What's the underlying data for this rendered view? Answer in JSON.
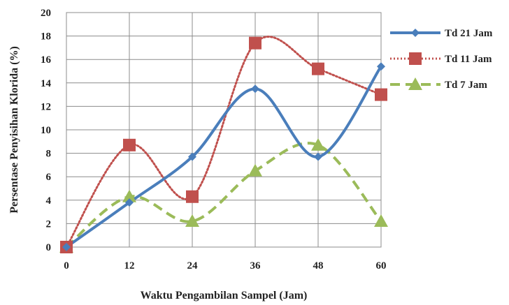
{
  "chart_data": {
    "type": "line",
    "title": "",
    "xlabel": "Waktu Pengambilan Sampel (Jam)",
    "ylabel": "Persentase Penyisihan Klorida (%)",
    "x": [
      0,
      12,
      24,
      36,
      48,
      60
    ],
    "x_ticks": [
      "0",
      "12",
      "24",
      "36",
      "48",
      "60"
    ],
    "xlim": [
      0,
      60
    ],
    "ylim": [
      0,
      20
    ],
    "y_ticks": [
      "0",
      "2",
      "4",
      "6",
      "8",
      "10",
      "12",
      "14",
      "16",
      "18",
      "20"
    ],
    "grid": true,
    "legend_position": "right",
    "series": [
      {
        "name": "Td 21 Jam",
        "values": [
          0,
          3.8,
          7.7,
          13.5,
          7.7,
          15.4
        ],
        "color": "#4a7ebb",
        "line_style": "solid",
        "marker": "diamond"
      },
      {
        "name": "Td 11 Jam",
        "values": [
          0,
          8.7,
          4.3,
          17.4,
          15.2,
          13.0
        ],
        "color": "#c0504d",
        "line_style": "dotted",
        "marker": "square"
      },
      {
        "name": "Td 7 Jam",
        "values": [
          0,
          4.3,
          2.2,
          6.5,
          8.7,
          2.2
        ],
        "color": "#9bbb59",
        "line_style": "dashed",
        "marker": "triangle"
      }
    ]
  }
}
